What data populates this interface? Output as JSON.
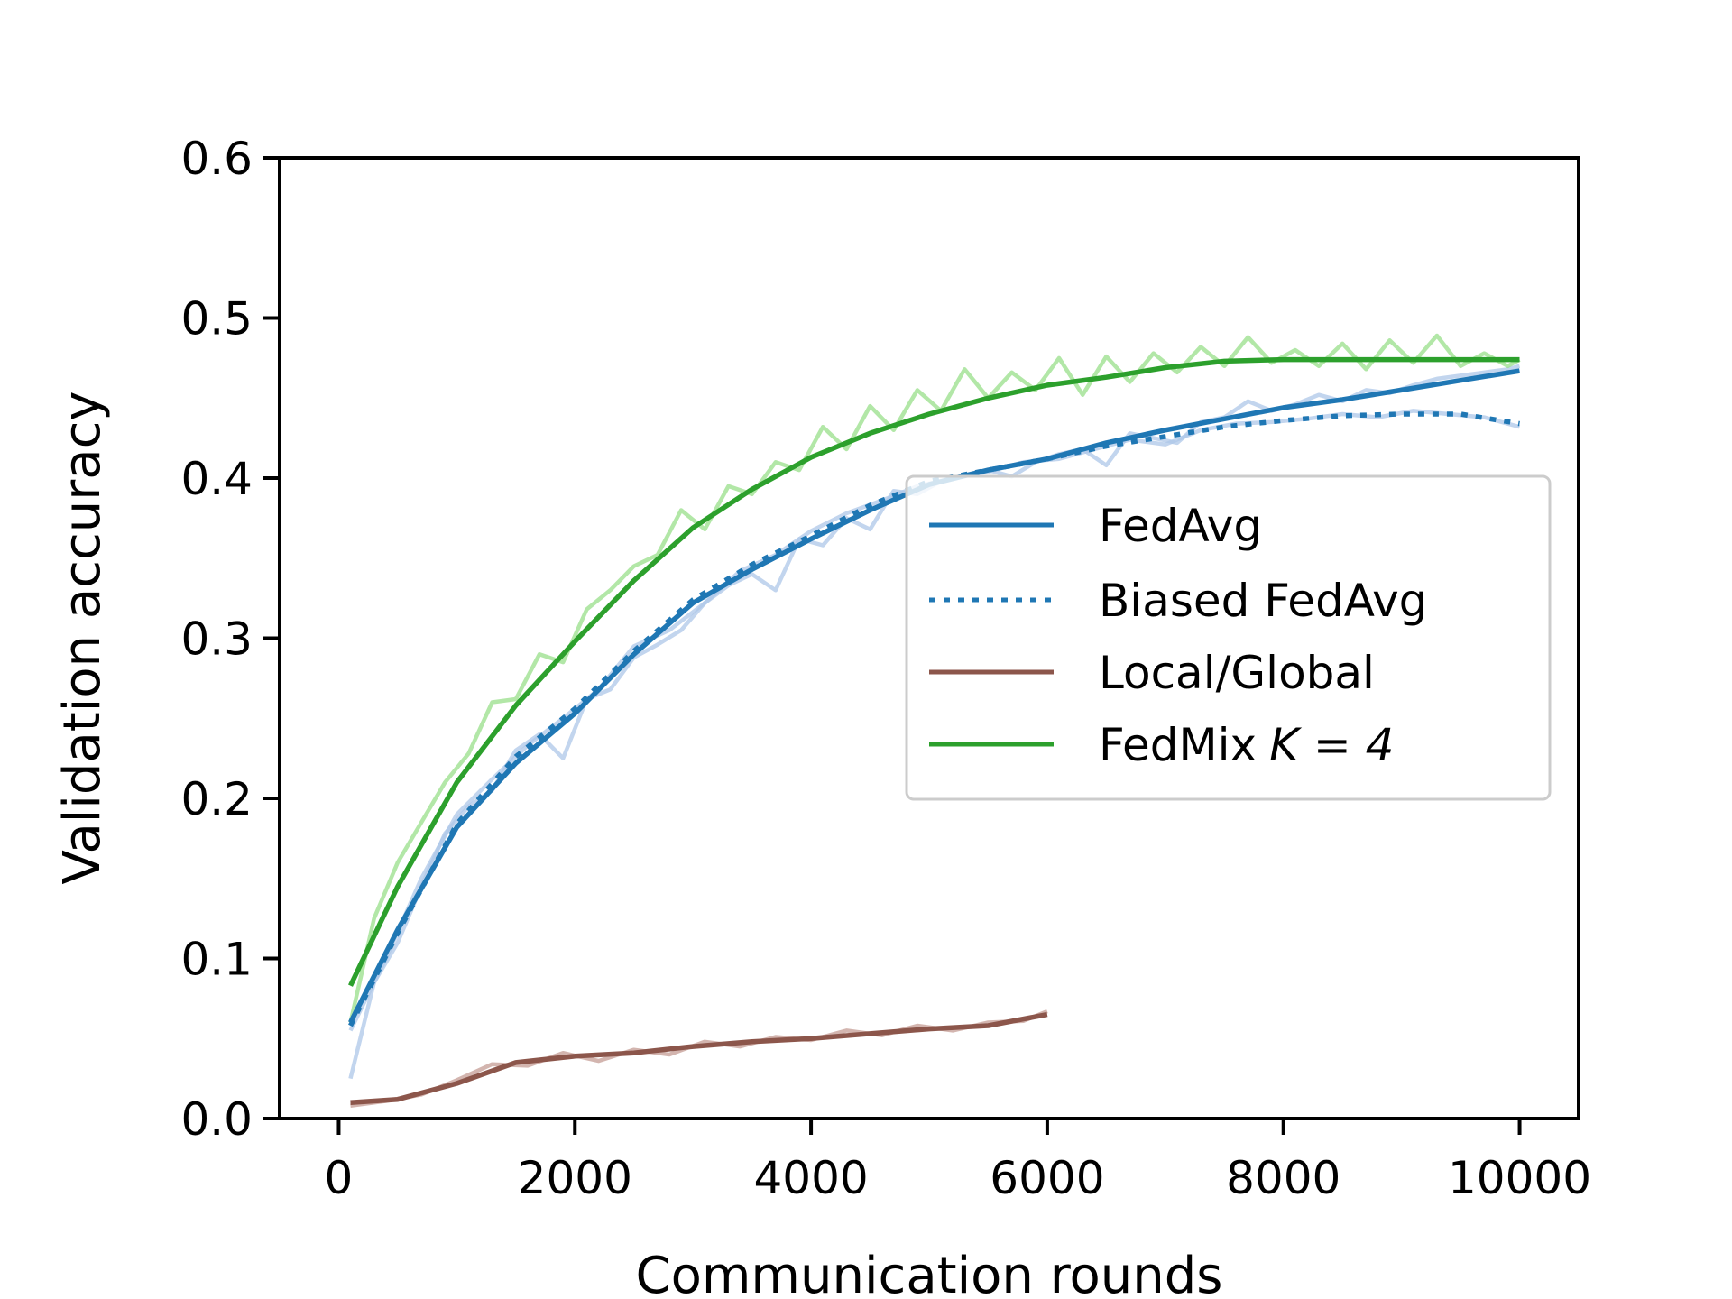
{
  "chart_data": {
    "type": "line",
    "title": "",
    "xlabel": "Communication rounds",
    "ylabel": "Validation accuracy",
    "xlim": [
      -500,
      10500
    ],
    "ylim": [
      0.0,
      0.6
    ],
    "xticks": [
      0,
      2000,
      4000,
      6000,
      8000,
      10000
    ],
    "xtick_labels": [
      "0",
      "2000",
      "4000",
      "6000",
      "8000",
      "10000"
    ],
    "yticks": [
      0.0,
      0.1,
      0.2,
      0.3,
      0.4,
      0.5,
      0.6
    ],
    "ytick_labels": [
      "0.0",
      "0.1",
      "0.2",
      "0.3",
      "0.4",
      "0.5",
      "0.6"
    ],
    "grid": false,
    "legend_position": "center-right",
    "series": [
      {
        "name": "FedAvg",
        "legend_label": "FedAvg",
        "color": "#1f77b4",
        "style": "solid",
        "x": [
          100,
          500,
          1000,
          1500,
          2000,
          2500,
          3000,
          3500,
          4000,
          4500,
          5000,
          5500,
          6000,
          6500,
          7000,
          7500,
          8000,
          8500,
          9000,
          9500,
          10000
        ],
        "y": [
          0.06,
          0.118,
          0.182,
          0.222,
          0.253,
          0.29,
          0.322,
          0.343,
          0.362,
          0.38,
          0.396,
          0.405,
          0.412,
          0.422,
          0.43,
          0.437,
          0.444,
          0.449,
          0.455,
          0.461,
          0.467
        ]
      },
      {
        "name": "Biased FedAvg",
        "legend_label": "Biased FedAvg",
        "color": "#1f77b4",
        "style": "dotted",
        "x": [
          100,
          500,
          1000,
          1500,
          2000,
          2500,
          3000,
          3500,
          4000,
          4500,
          5000,
          5500,
          6000,
          6500,
          7000,
          7500,
          8000,
          8500,
          9000,
          9500,
          10000
        ],
        "y": [
          0.058,
          0.116,
          0.184,
          0.226,
          0.256,
          0.292,
          0.324,
          0.346,
          0.364,
          0.383,
          0.398,
          0.405,
          0.412,
          0.42,
          0.426,
          0.432,
          0.436,
          0.439,
          0.44,
          0.44,
          0.434
        ]
      },
      {
        "name": "Local/Global",
        "legend_label": "Local/Global",
        "color": "#8c564b",
        "style": "solid",
        "x": [
          100,
          500,
          1000,
          1500,
          2000,
          2500,
          3000,
          3500,
          4000,
          4500,
          5000,
          5500,
          6000
        ],
        "y": [
          0.01,
          0.012,
          0.022,
          0.035,
          0.039,
          0.041,
          0.045,
          0.048,
          0.05,
          0.053,
          0.056,
          0.058,
          0.065
        ]
      },
      {
        "name": "FedMix K = 4",
        "legend_label": "FedMix",
        "legend_math": "K = 4",
        "color": "#2ca02c",
        "style": "solid",
        "x": [
          100,
          500,
          1000,
          1500,
          2000,
          2500,
          3000,
          3500,
          4000,
          4500,
          5000,
          5500,
          6000,
          6500,
          7000,
          7500,
          8000,
          8500,
          9000,
          9500,
          10000
        ],
        "y": [
          0.083,
          0.145,
          0.21,
          0.258,
          0.298,
          0.336,
          0.369,
          0.393,
          0.413,
          0.428,
          0.44,
          0.45,
          0.458,
          0.463,
          0.469,
          0.473,
          0.474,
          0.474,
          0.474,
          0.474,
          0.474
        ]
      }
    ],
    "raw_series": [
      {
        "name": "FedAvg (raw)",
        "color": "#aec7e8",
        "x": [
          100,
          300,
          500,
          700,
          900,
          1100,
          1300,
          1500,
          1700,
          1900,
          2100,
          2300,
          2500,
          2700,
          2900,
          3100,
          3300,
          3500,
          3700,
          3900,
          4100,
          4300,
          4500,
          4700,
          4900,
          5100,
          5300,
          5500,
          5700,
          5900,
          6100,
          6300,
          6500,
          6700,
          6900,
          7100,
          7300,
          7500,
          7700,
          7900,
          8100,
          8300,
          8500,
          8700,
          8900,
          9100,
          9300,
          9500,
          9700,
          9900,
          10000
        ],
        "y": [
          0.025,
          0.085,
          0.11,
          0.145,
          0.178,
          0.195,
          0.205,
          0.23,
          0.24,
          0.225,
          0.262,
          0.268,
          0.288,
          0.296,
          0.305,
          0.322,
          0.333,
          0.34,
          0.33,
          0.362,
          0.358,
          0.375,
          0.368,
          0.392,
          0.39,
          0.398,
          0.402,
          0.405,
          0.401,
          0.41,
          0.415,
          0.418,
          0.408,
          0.428,
          0.425,
          0.422,
          0.435,
          0.438,
          0.448,
          0.442,
          0.446,
          0.452,
          0.448,
          0.455,
          0.453,
          0.458,
          0.462,
          0.464,
          0.466,
          0.468,
          0.47
        ]
      },
      {
        "name": "Biased FedAvg (raw)",
        "color": "#aec7e8",
        "x": [
          100,
          400,
          700,
          1000,
          1300,
          1600,
          1900,
          2200,
          2500,
          2800,
          3100,
          3400,
          3700,
          4000,
          4300,
          4600,
          4900,
          5200,
          5500,
          5800,
          6100,
          6400,
          6700,
          7000,
          7300,
          7600,
          7900,
          8200,
          8500,
          8800,
          9100,
          9400,
          9700,
          10000
        ],
        "y": [
          0.055,
          0.1,
          0.15,
          0.19,
          0.212,
          0.233,
          0.25,
          0.268,
          0.295,
          0.305,
          0.322,
          0.342,
          0.352,
          0.367,
          0.378,
          0.386,
          0.395,
          0.4,
          0.404,
          0.41,
          0.412,
          0.418,
          0.424,
          0.421,
          0.43,
          0.434,
          0.435,
          0.437,
          0.44,
          0.438,
          0.442,
          0.44,
          0.438,
          0.432
        ]
      },
      {
        "name": "Local/Global (raw)",
        "color": "#c49c94",
        "x": [
          100,
          400,
          700,
          1000,
          1300,
          1600,
          1900,
          2200,
          2500,
          2800,
          3100,
          3400,
          3700,
          4000,
          4300,
          4600,
          4900,
          5200,
          5500,
          5800,
          6000
        ],
        "y": [
          0.008,
          0.011,
          0.015,
          0.024,
          0.034,
          0.033,
          0.041,
          0.036,
          0.043,
          0.04,
          0.048,
          0.045,
          0.051,
          0.049,
          0.055,
          0.052,
          0.058,
          0.055,
          0.06,
          0.061,
          0.067
        ]
      },
      {
        "name": "FedMix K = 4 (raw)",
        "color": "#98df8a",
        "x": [
          100,
          300,
          500,
          700,
          900,
          1100,
          1300,
          1500,
          1700,
          1900,
          2100,
          2300,
          2500,
          2700,
          2900,
          3100,
          3300,
          3500,
          3700,
          3900,
          4100,
          4300,
          4500,
          4700,
          4900,
          5100,
          5300,
          5500,
          5700,
          5900,
          6100,
          6300,
          6500,
          6700,
          6900,
          7100,
          7300,
          7500,
          7700,
          7900,
          8100,
          8300,
          8500,
          8700,
          8900,
          9100,
          9300,
          9500,
          9700,
          9900,
          10000
        ],
        "y": [
          0.06,
          0.125,
          0.16,
          0.185,
          0.21,
          0.228,
          0.26,
          0.262,
          0.29,
          0.285,
          0.318,
          0.33,
          0.345,
          0.352,
          0.38,
          0.368,
          0.395,
          0.39,
          0.41,
          0.405,
          0.432,
          0.418,
          0.445,
          0.43,
          0.455,
          0.442,
          0.468,
          0.45,
          0.466,
          0.455,
          0.475,
          0.452,
          0.476,
          0.46,
          0.478,
          0.466,
          0.482,
          0.47,
          0.488,
          0.472,
          0.48,
          0.47,
          0.484,
          0.468,
          0.486,
          0.472,
          0.489,
          0.47,
          0.478,
          0.47,
          0.474
        ]
      }
    ]
  }
}
